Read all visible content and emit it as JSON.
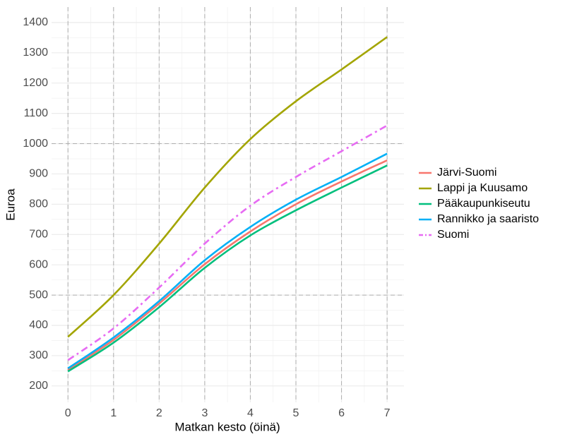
{
  "chart_data": {
    "type": "line",
    "x_label": "Matkan kesto (öinä)",
    "y_label": "Euroa",
    "x": [
      0,
      1,
      2,
      3,
      4,
      5,
      6,
      7
    ],
    "series": [
      {
        "name": "Järvi-Suomi",
        "color": "#f8766d",
        "linetype": "solid",
        "values": [
          253,
          352,
          472,
          602,
          710,
          800,
          875,
          945
        ]
      },
      {
        "name": "Lappi ja Kuusamo",
        "color": "#a3a500",
        "linetype": "solid",
        "values": [
          362,
          500,
          670,
          855,
          1015,
          1140,
          1245,
          1352
        ]
      },
      {
        "name": "Pääkaupunkiseutu",
        "color": "#00bf7d",
        "linetype": "solid",
        "values": [
          248,
          343,
          460,
          590,
          697,
          780,
          855,
          928
        ]
      },
      {
        "name": "Rannikko ja saaristo",
        "color": "#00b0f6",
        "linetype": "solid",
        "values": [
          258,
          360,
          480,
          615,
          725,
          815,
          890,
          967
        ]
      },
      {
        "name": "Suomi",
        "color": "#e76bf3",
        "linetype": "dashdot",
        "values": [
          285,
          390,
          525,
          670,
          795,
          890,
          975,
          1060
        ]
      }
    ],
    "xlim": [
      -0.36,
      7.37
    ],
    "xticks": [
      0,
      1,
      2,
      3,
      4,
      5,
      6,
      7
    ],
    "ylim": [
      146,
      1451
    ],
    "yticks": [
      200,
      300,
      400,
      500,
      600,
      700,
      800,
      900,
      1000,
      1100,
      1200,
      1300,
      1400
    ],
    "hlines": [
      500,
      1000
    ],
    "vlines": [
      0,
      1,
      2,
      3,
      4,
      5,
      6,
      7
    ],
    "grid": true,
    "legend": "right"
  }
}
